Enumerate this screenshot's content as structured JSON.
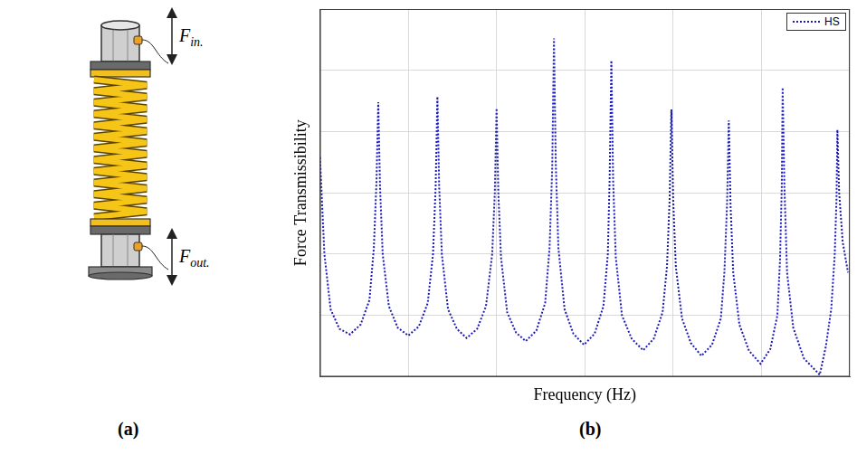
{
  "panel_labels": [
    "(a)",
    "(b)"
  ],
  "diagram": {
    "forces": [
      {
        "symbol": "F",
        "subscript": "in."
      },
      {
        "symbol": "F",
        "subscript": "out."
      }
    ]
  },
  "chart_data": {
    "type": "line",
    "x_label": "Frequency (Hz)",
    "y_label": "Force Transmissibility",
    "xlim": [
      0,
      6
    ],
    "xticks": [
      0,
      1,
      2,
      3,
      4,
      5,
      6
    ],
    "ylim": [
      0,
      6
    ],
    "yticks": [
      0,
      1,
      2,
      3,
      4,
      5,
      6
    ],
    "grid": true,
    "tick_labels": false,
    "legend": "upper right",
    "series": [
      {
        "name": "HS",
        "color": "#1a1ab8",
        "line_style": "dotted",
        "marker": "none",
        "x": [
          0.0,
          0.05,
          0.12,
          0.22,
          0.34,
          0.46,
          0.56,
          0.61,
          0.64,
          0.66,
          0.68,
          0.71,
          0.78,
          0.88,
          1.0,
          1.12,
          1.22,
          1.28,
          1.31,
          1.33,
          1.35,
          1.38,
          1.45,
          1.55,
          1.66,
          1.78,
          1.88,
          1.95,
          1.98,
          2.0,
          2.02,
          2.05,
          2.12,
          2.22,
          2.33,
          2.45,
          2.55,
          2.6,
          2.63,
          2.65,
          2.67,
          2.7,
          2.77,
          2.87,
          2.99,
          3.11,
          3.21,
          3.26,
          3.28,
          3.3,
          3.32,
          3.35,
          3.42,
          3.53,
          3.66,
          3.78,
          3.88,
          3.93,
          3.96,
          3.98,
          4.0,
          4.03,
          4.1,
          4.2,
          4.32,
          4.44,
          4.54,
          4.58,
          4.61,
          4.63,
          4.65,
          4.68,
          4.75,
          4.86,
          4.99,
          5.1,
          5.18,
          5.21,
          5.23,
          5.24,
          5.26,
          5.29,
          5.36,
          5.48,
          5.66,
          5.73,
          5.79,
          5.83,
          5.85,
          5.86,
          5.88,
          5.92,
          5.98
        ],
        "values": [
          3.58,
          2.0,
          1.1,
          0.78,
          0.69,
          0.85,
          1.25,
          2.1,
          3.2,
          4.48,
          3.1,
          2.0,
          1.15,
          0.8,
          0.67,
          0.82,
          1.2,
          2.0,
          3.1,
          4.57,
          3.1,
          2.0,
          1.1,
          0.78,
          0.63,
          0.78,
          1.15,
          2.0,
          3.0,
          4.38,
          3.0,
          1.95,
          1.05,
          0.72,
          0.58,
          0.75,
          1.2,
          2.1,
          3.4,
          5.52,
          3.5,
          2.1,
          1.1,
          0.7,
          0.52,
          0.7,
          1.15,
          2.0,
          3.2,
          5.16,
          3.2,
          1.95,
          1.0,
          0.62,
          0.43,
          0.62,
          1.05,
          1.8,
          2.9,
          4.36,
          2.9,
          1.8,
          0.95,
          0.55,
          0.34,
          0.52,
          0.95,
          1.7,
          2.8,
          4.18,
          2.8,
          1.7,
          0.85,
          0.42,
          0.21,
          0.45,
          1.0,
          1.9,
          3.1,
          4.72,
          3.1,
          1.7,
          0.8,
          0.3,
          0.03,
          0.5,
          1.1,
          2.0,
          2.9,
          4.03,
          3.0,
          2.2,
          1.7
        ]
      }
    ]
  }
}
